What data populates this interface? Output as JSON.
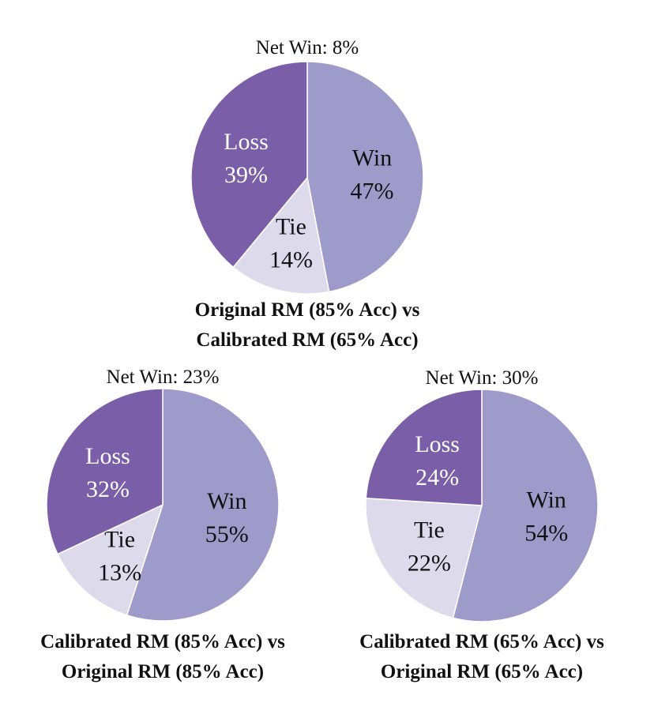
{
  "chart_data": [
    {
      "type": "pie",
      "net_win": "Net Win: 8%",
      "caption": [
        "Original RM (85% Acc) vs",
        "Calibrated RM (65% Acc)"
      ],
      "slices": [
        {
          "label": "Win",
          "value": 47,
          "value_text": "47%",
          "color": "#9e9bcb"
        },
        {
          "label": "Tie",
          "value": 14,
          "value_text": "14%",
          "color": "#dcdaeb"
        },
        {
          "label": "Loss",
          "value": 39,
          "value_text": "39%",
          "color": "#7b5ea8"
        }
      ]
    },
    {
      "type": "pie",
      "net_win": "Net Win: 23%",
      "caption": [
        "Calibrated RM (85% Acc) vs",
        "Original RM (85% Acc)"
      ],
      "slices": [
        {
          "label": "Win",
          "value": 55,
          "value_text": "55%",
          "color": "#9e9bcb"
        },
        {
          "label": "Tie",
          "value": 13,
          "value_text": "13%",
          "color": "#dcdaeb"
        },
        {
          "label": "Loss",
          "value": 32,
          "value_text": "32%",
          "color": "#7b5ea8"
        }
      ]
    },
    {
      "type": "pie",
      "net_win": "Net Win: 30%",
      "caption": [
        "Calibrated RM (65% Acc) vs",
        "Original RM (65% Acc)"
      ],
      "slices": [
        {
          "label": "Win",
          "value": 54,
          "value_text": "54%",
          "color": "#9e9bcb"
        },
        {
          "label": "Tie",
          "value": 22,
          "value_text": "22%",
          "color": "#dcdaeb"
        },
        {
          "label": "Loss",
          "value": 24,
          "value_text": "24%",
          "color": "#7b5ea8"
        }
      ]
    }
  ],
  "colors": {
    "win": "#9e9bcb",
    "tie": "#dcdaeb",
    "loss": "#7b5ea8",
    "label_dark": "#111111",
    "label_light": "#ffffff",
    "edge": "#ffffff"
  }
}
